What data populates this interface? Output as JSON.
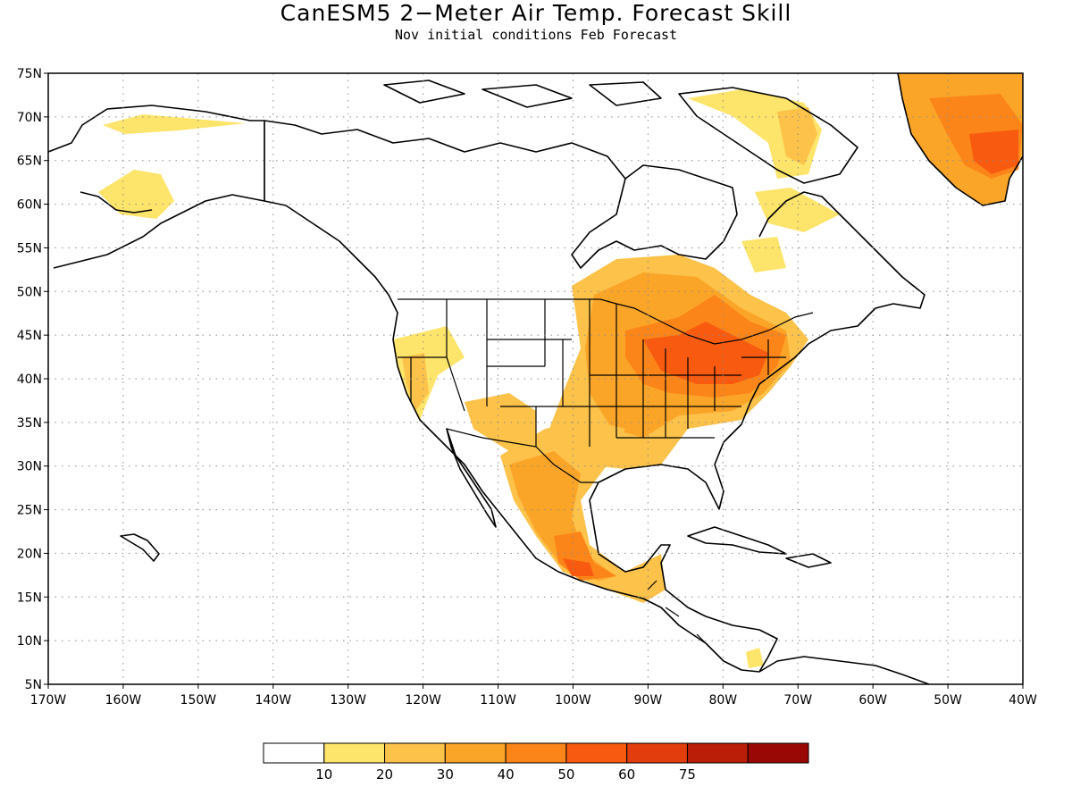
{
  "title": "CanESM5 2−Meter Air Temp. Forecast Skill",
  "subtitle": "Nov initial conditions  Feb Forecast",
  "map": {
    "lat_labels": [
      "75N",
      "70N",
      "65N",
      "60N",
      "55N",
      "50N",
      "45N",
      "40N",
      "35N",
      "30N",
      "25N",
      "20N",
      "15N",
      "10N",
      "5N"
    ],
    "lon_labels": [
      "170W",
      "160W",
      "150W",
      "140W",
      "130W",
      "120W",
      "110W",
      "100W",
      "90W",
      "80W",
      "70W",
      "60W",
      "50W",
      "40W"
    ],
    "grid": true,
    "land_color": "#ffffff",
    "coastline_color": "#000000"
  },
  "colorbar": {
    "labels": [
      "10",
      "20",
      "30",
      "40",
      "50",
      "60",
      "75"
    ],
    "colors": [
      "#ffffff",
      "#fde46a",
      "#fcc24a",
      "#fba528",
      "#fb8519",
      "#f85b0f",
      "#e23d0c",
      "#ba1e08",
      "#9a0806"
    ]
  }
}
